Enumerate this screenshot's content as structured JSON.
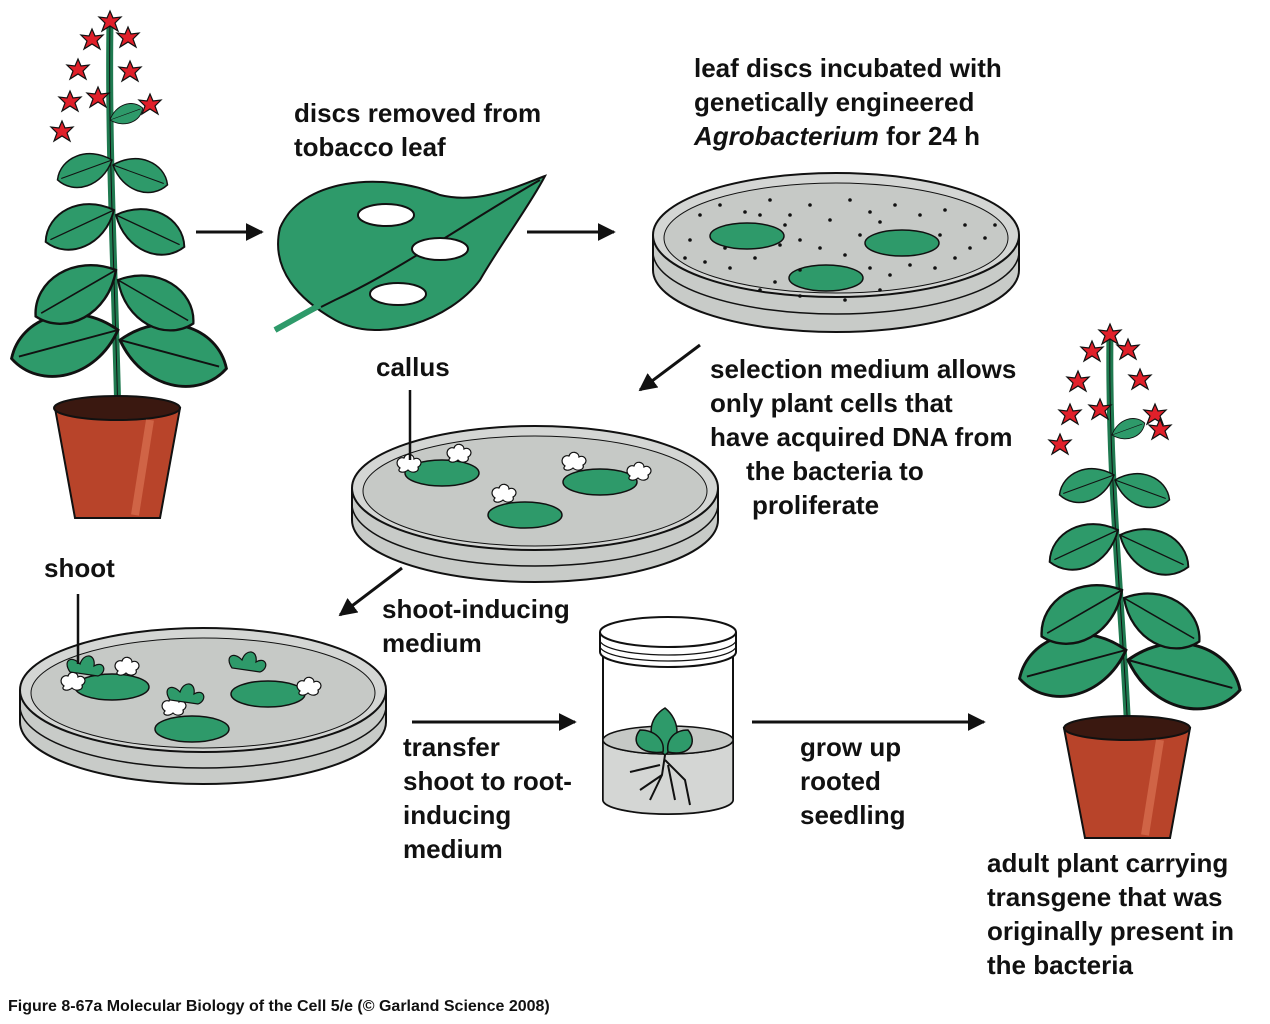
{
  "labels": {
    "discs_removed": [
      "discs removed from",
      "tobacco leaf"
    ],
    "incubated": [
      "leaf discs incubated with",
      "genetically engineered",
      "Agrobacterium",
      "for 24 h"
    ],
    "callus": "callus",
    "selection": [
      "selection medium allows",
      "only plant cells that",
      "have acquired DNA from",
      "the bacteria to",
      "proliferate"
    ],
    "shoot": "shoot",
    "shoot_inducing": [
      "shoot-inducing",
      "medium"
    ],
    "transfer": [
      "transfer",
      "shoot to root-",
      "inducing",
      "medium"
    ],
    "grow_up": [
      "grow up",
      "rooted",
      "seedling"
    ],
    "adult": [
      "adult plant carrying",
      "transgene that was",
      "originally present in",
      "the bacteria"
    ]
  },
  "caption": "Figure 8-67a  Molecular Biology of the Cell 5/e (© Garland Science 2008)",
  "colors": {
    "leaf": "#2e9a6a",
    "leaf_dark": "#1f7a50",
    "flower": "#e0202a",
    "pot": "#b8442a",
    "dish": "#c8cbc8",
    "outline": "#111111"
  }
}
